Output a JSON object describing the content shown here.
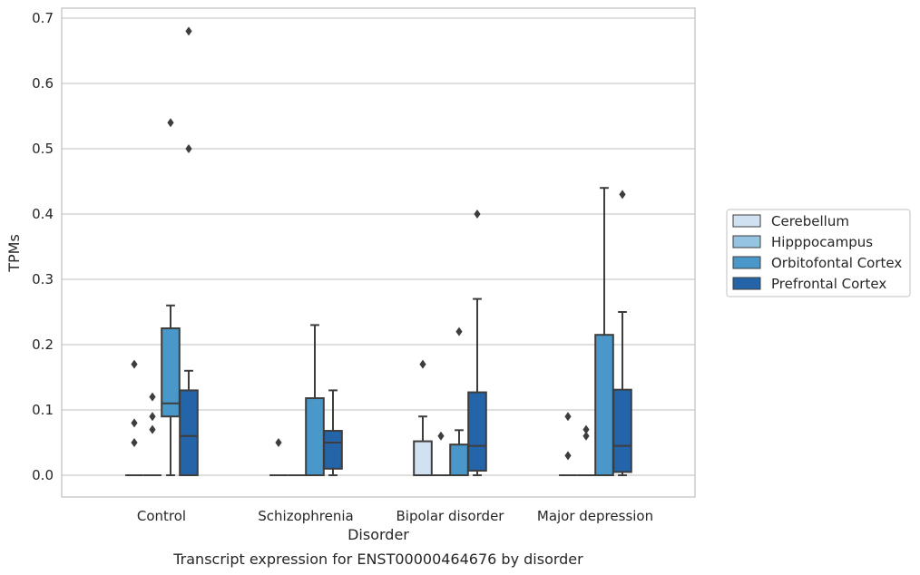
{
  "chart_data": {
    "type": "boxplot",
    "xlabel": "Disorder",
    "ylabel": "TPMs",
    "caption": "Transcript expression for ENST00000464676 by disorder",
    "ylim": [
      -0.033,
      0.715
    ],
    "yticks": [
      "0.0",
      "0.1",
      "0.2",
      "0.3",
      "0.4",
      "0.5",
      "0.6",
      "0.7"
    ],
    "grid": "horizontal",
    "legend_position": "right",
    "categories": [
      "Control",
      "Schizophrenia",
      "Bipolar disorder",
      "Major depression"
    ],
    "series": [
      {
        "name": "Cerebellum",
        "color": "#d0e1f2",
        "boxes": [
          {
            "q1": 0,
            "median": 0,
            "q3": 0,
            "whislo": 0,
            "whishi": 0,
            "fliers": [
              0.17,
              0.08,
              0.05
            ]
          },
          {
            "q1": 0,
            "median": 0,
            "q3": 0,
            "whislo": 0,
            "whishi": 0,
            "fliers": [
              0.05
            ]
          },
          {
            "q1": 0,
            "median": 0,
            "q3": 0.052,
            "whislo": 0,
            "whishi": 0.09,
            "fliers": [
              0.17
            ]
          },
          {
            "q1": 0,
            "median": 0,
            "q3": 0,
            "whislo": 0,
            "whishi": 0,
            "fliers": [
              0.09,
              0.03
            ]
          }
        ]
      },
      {
        "name": "Hipppocampus",
        "color": "#94c4df",
        "boxes": [
          {
            "q1": 0,
            "median": 0,
            "q3": 0,
            "whislo": 0,
            "whishi": 0,
            "fliers": [
              0.12,
              0.09,
              0.07
            ]
          },
          {
            "q1": 0,
            "median": 0,
            "q3": 0,
            "whislo": 0,
            "whishi": 0,
            "fliers": []
          },
          {
            "q1": 0,
            "median": 0,
            "q3": 0,
            "whislo": 0,
            "whishi": 0,
            "fliers": [
              0.06
            ]
          },
          {
            "q1": 0,
            "median": 0,
            "q3": 0,
            "whislo": 0,
            "whishi": 0,
            "fliers": [
              0.07,
              0.06
            ]
          }
        ]
      },
      {
        "name": "Orbitofontal Cortex",
        "color": "#4a98c9",
        "boxes": [
          {
            "q1": 0.09,
            "median": 0.11,
            "q3": 0.225,
            "whislo": 0,
            "whishi": 0.26,
            "fliers": [
              0.54
            ]
          },
          {
            "q1": 0,
            "median": 0,
            "q3": 0.118,
            "whislo": 0,
            "whishi": 0.23,
            "fliers": []
          },
          {
            "q1": 0,
            "median": 0,
            "q3": 0.047,
            "whislo": 0,
            "whishi": 0.069,
            "fliers": [
              0.22
            ]
          },
          {
            "q1": 0,
            "median": 0,
            "q3": 0.215,
            "whislo": 0,
            "whishi": 0.44,
            "fliers": []
          }
        ]
      },
      {
        "name": "Prefrontal Cortex",
        "color": "#2464a8",
        "boxes": [
          {
            "q1": 0,
            "median": 0.06,
            "q3": 0.13,
            "whislo": 0,
            "whishi": 0.16,
            "fliers": [
              0.68,
              0.5
            ]
          },
          {
            "q1": 0.01,
            "median": 0.05,
            "q3": 0.068,
            "whislo": 0,
            "whishi": 0.13,
            "fliers": []
          },
          {
            "q1": 0.007,
            "median": 0.045,
            "q3": 0.127,
            "whislo": 0,
            "whishi": 0.27,
            "fliers": [
              0.4
            ]
          },
          {
            "q1": 0.005,
            "median": 0.045,
            "q3": 0.131,
            "whislo": 0,
            "whishi": 0.25,
            "fliers": [
              0.43
            ]
          }
        ]
      }
    ]
  }
}
